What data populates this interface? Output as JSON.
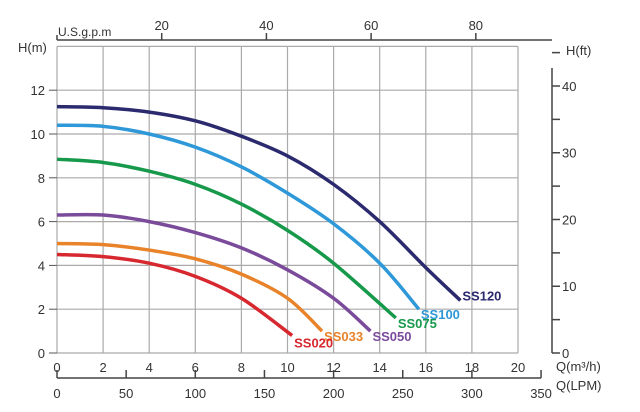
{
  "chart_data": {
    "type": "line",
    "xlabel": "Q(m³/h)",
    "ylabel": "H(m)",
    "y2label": "H(ft)",
    "x2label_bottom": "Q(LPM)",
    "x_top_label": "U.S.g.p.m",
    "xlim": [
      0,
      20
    ],
    "ylim": [
      0,
      14
    ],
    "x_ticks": [
      "0",
      "2",
      "4",
      "6",
      "8",
      "10",
      "12",
      "14",
      "16",
      "18",
      "20"
    ],
    "y_ticks": [
      "0",
      "2",
      "4",
      "6",
      "8",
      "10",
      "12"
    ],
    "y2_ticks": [
      "0",
      "10",
      "20",
      "30",
      "40"
    ],
    "lpm_ticks": [
      "0",
      "50",
      "100",
      "150",
      "200",
      "250",
      "300",
      "350"
    ],
    "gpm_ticks": [
      "20",
      "40",
      "60",
      "80"
    ],
    "grid": true,
    "series": [
      {
        "name": "SS120",
        "color": "#2b2a6e",
        "x": [
          0,
          2,
          4,
          6,
          8,
          10,
          12,
          14,
          16,
          17.5
        ],
        "y": [
          11.25,
          11.2,
          11.0,
          10.6,
          9.9,
          9.0,
          7.7,
          6.0,
          3.9,
          2.4
        ]
      },
      {
        "name": "SS100",
        "color": "#2e98d8",
        "x": [
          0,
          2,
          4,
          6,
          8,
          10,
          12,
          14,
          15.7
        ],
        "y": [
          10.4,
          10.35,
          10.0,
          9.4,
          8.5,
          7.3,
          5.9,
          4.1,
          2.0
        ]
      },
      {
        "name": "SS075",
        "color": "#16994a",
        "x": [
          0,
          2,
          4,
          6,
          8,
          10,
          12,
          14.7
        ],
        "y": [
          8.85,
          8.7,
          8.3,
          7.7,
          6.8,
          5.6,
          4.1,
          1.6
        ]
      },
      {
        "name": "SS050",
        "color": "#7b4b9b",
        "x": [
          0,
          2,
          4,
          6,
          8,
          10,
          12,
          13.6
        ],
        "y": [
          6.3,
          6.3,
          6.0,
          5.5,
          4.8,
          3.8,
          2.5,
          1.0
        ]
      },
      {
        "name": "SS033",
        "color": "#e8832a",
        "x": [
          0,
          2,
          4,
          6,
          8,
          10,
          11.5
        ],
        "y": [
          5.0,
          4.95,
          4.7,
          4.3,
          3.6,
          2.5,
          1.0
        ]
      },
      {
        "name": "SS020",
        "color": "#d7282f",
        "x": [
          0,
          2,
          4,
          6,
          8,
          10.2
        ],
        "y": [
          4.5,
          4.4,
          4.1,
          3.5,
          2.5,
          0.8
        ]
      }
    ]
  }
}
